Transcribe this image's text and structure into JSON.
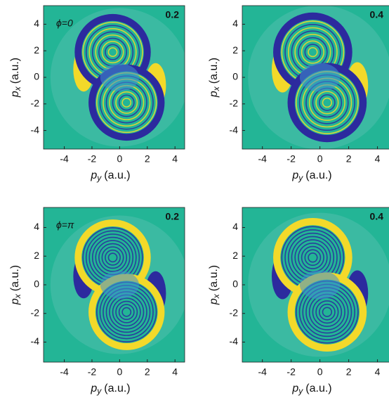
{
  "chart_data": [
    {
      "type": "image",
      "panel_label": "ϕ=0",
      "intensity": 0.2,
      "xlabel": {
        "symbol": "p",
        "subscript": "y",
        "unit": "(a.u.)"
      },
      "ylabel": {
        "symbol": "p",
        "subscript": "x",
        "unit": "(a.u.)"
      },
      "xlim": [
        -5.5,
        4.7
      ],
      "ylim": [
        -5.4,
        5.4
      ],
      "xticks": [
        -4,
        -2,
        0,
        2,
        4
      ],
      "yticks": [
        -4,
        -2,
        0,
        2,
        4
      ]
    },
    {
      "type": "image",
      "intensity": 0.4,
      "xlabel": {
        "symbol": "p",
        "subscript": "y",
        "unit": "(a.u.)"
      },
      "ylabel": {
        "symbol": "p",
        "subscript": "x",
        "unit": "(a.u.)"
      },
      "xlim": [
        -5.4,
        4.9
      ],
      "ylim": [
        -5.4,
        5.4
      ],
      "xticks": [
        -4,
        -2,
        0,
        2,
        4
      ],
      "yticks": [
        -4,
        -2,
        0,
        2,
        4
      ]
    },
    {
      "type": "image",
      "panel_label": "ϕ=π",
      "intensity": 0.2,
      "xlabel": {
        "symbol": "p",
        "subscript": "y",
        "unit": "(a.u.)"
      },
      "ylabel": {
        "symbol": "p",
        "subscript": "x",
        "unit": "(a.u.)"
      },
      "xlim": [
        -5.5,
        4.7
      ],
      "ylim": [
        -5.4,
        5.4
      ],
      "xticks": [
        -4,
        -2,
        0,
        2,
        4
      ],
      "yticks": [
        -4,
        -2,
        0,
        2,
        4
      ]
    },
    {
      "type": "image",
      "intensity": 0.4,
      "xlabel": {
        "symbol": "p",
        "subscript": "y",
        "unit": "(a.u.)"
      },
      "ylabel": {
        "symbol": "p",
        "subscript": "x",
        "unit": "(a.u.)"
      },
      "xlim": [
        -5.4,
        4.9
      ],
      "ylim": [
        -5.4,
        5.4
      ],
      "xticks": [
        -4,
        -2,
        0,
        2,
        4
      ],
      "yticks": [
        -4,
        -2,
        0,
        2,
        4
      ]
    }
  ]
}
